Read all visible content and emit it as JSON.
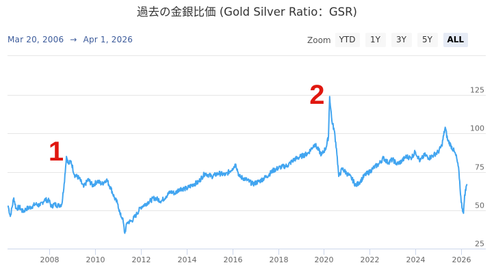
{
  "header": {
    "title": "過去の金銀比価 (Gold Silver Ratio：GSR)"
  },
  "range": {
    "from": "Mar 20, 2006",
    "arrow": "→",
    "to": "Apr 1, 2026"
  },
  "zoom": {
    "label": "Zoom",
    "buttons": [
      {
        "label": "YTD",
        "active": false
      },
      {
        "label": "1Y",
        "active": false
      },
      {
        "label": "3Y",
        "active": false
      },
      {
        "label": "5Y",
        "active": false
      },
      {
        "label": "ALL",
        "active": true
      }
    ]
  },
  "colors": {
    "line": "#42a5f0",
    "annotation": "#e0170f",
    "grid": "#e6e6e6",
    "axis": "#ccd6eb"
  },
  "annotations": [
    {
      "label": "1",
      "year": 2008.3
    },
    {
      "label": "2",
      "year": 2019.7
    }
  ],
  "chart_data": {
    "type": "line",
    "title": "過去の金銀比価 (Gold Silver Ratio：GSR)",
    "xlabel": "",
    "ylabel": "",
    "ylim": [
      25,
      125
    ],
    "xlim": [
      2006.2,
      2026.25
    ],
    "y_ticks": [
      25,
      50,
      75,
      100,
      125
    ],
    "x_ticks": [
      "2008",
      "2010",
      "2012",
      "2014",
      "2016",
      "2018",
      "2020",
      "2022",
      "2024",
      "2026"
    ],
    "grid": true,
    "legend": "none",
    "y_axis_position": "right",
    "series": [
      {
        "name": "Gold/Silver Ratio",
        "x": [
          2006.2,
          2006.3,
          2006.45,
          2006.55,
          2006.7,
          2006.85,
          2007.0,
          2007.2,
          2007.4,
          2007.6,
          2007.8,
          2008.0,
          2008.1,
          2008.2,
          2008.4,
          2008.55,
          2008.65,
          2008.75,
          2008.85,
          2008.95,
          2009.1,
          2009.3,
          2009.5,
          2009.7,
          2009.9,
          2010.1,
          2010.3,
          2010.5,
          2010.7,
          2010.85,
          2011.0,
          2011.1,
          2011.2,
          2011.3,
          2011.4,
          2011.6,
          2011.8,
          2012.0,
          2012.3,
          2012.6,
          2012.9,
          2013.1,
          2013.3,
          2013.5,
          2013.7,
          2014.0,
          2014.3,
          2014.5,
          2014.8,
          2015.1,
          2015.4,
          2015.7,
          2016.0,
          2016.15,
          2016.3,
          2016.6,
          2016.9,
          2017.2,
          2017.5,
          2017.8,
          2018.1,
          2018.4,
          2018.7,
          2019.0,
          2019.3,
          2019.6,
          2019.9,
          2020.1,
          2020.2,
          2020.25,
          2020.35,
          2020.45,
          2020.55,
          2020.65,
          2020.8,
          2021.0,
          2021.2,
          2021.4,
          2021.6,
          2021.8,
          2022.0,
          2022.2,
          2022.4,
          2022.6,
          2022.8,
          2023.0,
          2023.2,
          2023.4,
          2023.6,
          2023.8,
          2024.0,
          2024.2,
          2024.4,
          2024.6,
          2024.8,
          2025.0,
          2025.15,
          2025.3,
          2025.4,
          2025.55,
          2025.7,
          2025.8,
          2025.9,
          2026.0,
          2026.1,
          2026.15,
          2026.25
        ],
        "values": [
          53,
          46,
          58,
          51,
          52,
          49,
          51,
          52,
          54,
          53,
          57,
          56,
          52,
          54,
          53,
          54,
          67,
          85,
          80,
          82,
          73,
          71,
          65,
          70,
          66,
          69,
          67,
          70,
          64,
          58,
          54,
          47,
          45,
          35,
          42,
          43,
          47,
          52,
          55,
          58,
          56,
          59,
          62,
          61,
          64,
          64,
          67,
          68,
          74,
          72,
          74,
          73,
          77,
          80,
          72,
          70,
          67,
          69,
          72,
          76,
          78,
          79,
          83,
          85,
          87,
          93,
          86,
          91,
          98,
          124,
          108,
          102,
          90,
          72,
          77,
          74,
          71,
          66,
          69,
          73,
          75,
          78,
          80,
          84,
          81,
          83,
          80,
          82,
          85,
          84,
          88,
          82,
          86,
          84,
          86,
          88,
          92,
          104,
          96,
          92,
          88,
          84,
          75,
          55,
          48,
          60,
          67
        ]
      }
    ]
  }
}
